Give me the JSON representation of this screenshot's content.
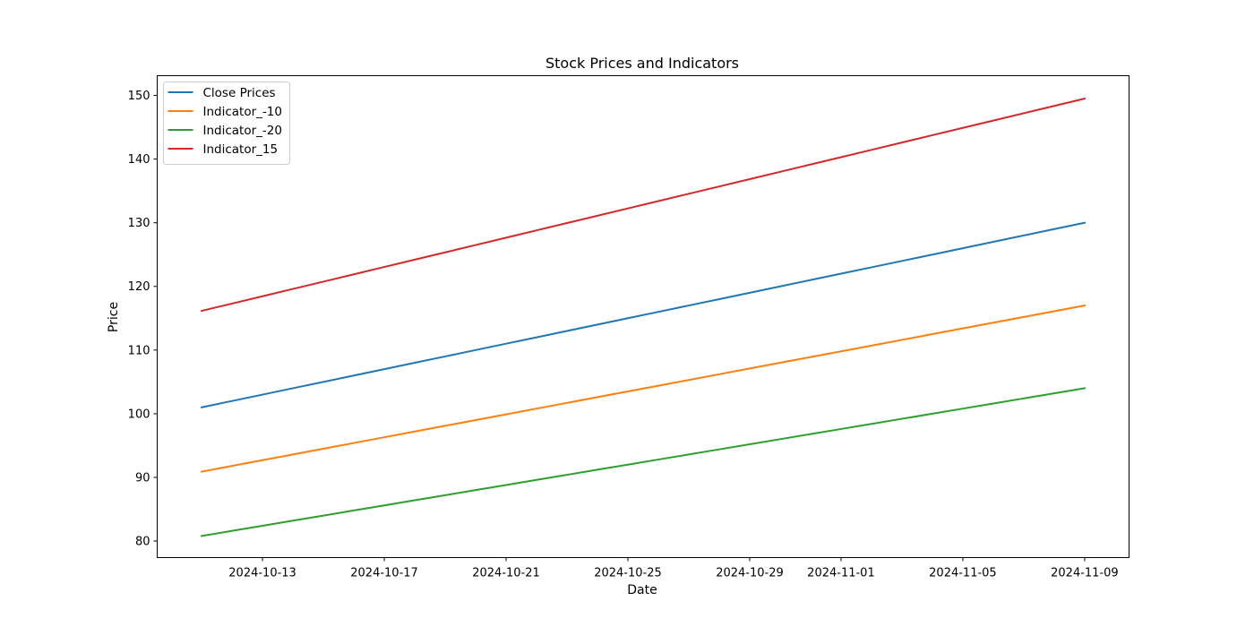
{
  "chart_data": {
    "type": "line",
    "title": "Stock Prices and Indicators",
    "xlabel": "Date",
    "ylabel": "Price",
    "x": [
      "2024-10-11",
      "2024-10-12",
      "2024-10-13",
      "2024-10-14",
      "2024-10-15",
      "2024-10-16",
      "2024-10-17",
      "2024-10-18",
      "2024-10-19",
      "2024-10-20",
      "2024-10-21",
      "2024-10-22",
      "2024-10-23",
      "2024-10-24",
      "2024-10-25",
      "2024-10-26",
      "2024-10-27",
      "2024-10-28",
      "2024-10-29",
      "2024-10-30",
      "2024-10-31",
      "2024-11-01",
      "2024-11-02",
      "2024-11-03",
      "2024-11-04",
      "2024-11-05",
      "2024-11-06",
      "2024-11-07",
      "2024-11-08",
      "2024-11-09"
    ],
    "series": [
      {
        "name": "Close Prices",
        "color": "#1f77b4",
        "values": [
          101,
          102,
          103,
          104,
          105,
          106,
          107,
          108,
          109,
          110,
          111,
          112,
          113,
          114,
          115,
          116,
          117,
          118,
          119,
          120,
          121,
          122,
          123,
          124,
          125,
          126,
          127,
          128,
          129,
          130
        ]
      },
      {
        "name": "Indicator_-10",
        "color": "#ff7f0e",
        "values": [
          90.9,
          91.8,
          92.7,
          93.6,
          94.5,
          95.4,
          96.3,
          97.2,
          98.1,
          99.0,
          99.9,
          100.8,
          101.7,
          102.6,
          103.5,
          104.4,
          105.3,
          106.2,
          107.1,
          108.0,
          108.9,
          109.8,
          110.7,
          111.6,
          112.5,
          113.4,
          114.3,
          115.2,
          116.1,
          117.0
        ]
      },
      {
        "name": "Indicator_-20",
        "color": "#2ca02c",
        "values": [
          80.8,
          81.6,
          82.4,
          83.2,
          84.0,
          84.8,
          85.6,
          86.4,
          87.2,
          88.0,
          88.8,
          89.6,
          90.4,
          91.2,
          92.0,
          92.8,
          93.6,
          94.4,
          95.2,
          96.0,
          96.8,
          97.6,
          98.4,
          99.2,
          100.0,
          100.8,
          101.6,
          102.4,
          103.2,
          104.0
        ]
      },
      {
        "name": "Indicator_15",
        "color": "#d62728",
        "values": [
          116.15,
          117.3,
          118.45,
          119.6,
          120.75,
          121.9,
          123.05,
          124.2,
          125.35,
          126.5,
          127.65,
          128.8,
          129.95,
          131.1,
          132.25,
          133.4,
          134.55,
          135.7,
          136.85,
          138.0,
          139.15,
          140.3,
          141.45,
          142.6,
          143.75,
          144.9,
          146.05,
          147.2,
          148.35,
          149.5
        ]
      }
    ],
    "x_ticks": [
      "2024-10-13",
      "2024-10-17",
      "2024-10-21",
      "2024-10-25",
      "2024-10-29",
      "2024-11-01",
      "2024-11-05",
      "2024-11-09"
    ],
    "y_ticks": [
      80,
      90,
      100,
      110,
      120,
      130,
      140,
      150
    ],
    "xlim": [
      "2024-10-09 13:00",
      "2024-11-10 11:00"
    ],
    "ylim": [
      77.4,
      153.1
    ],
    "grid": false,
    "legend_position": "upper-left"
  }
}
